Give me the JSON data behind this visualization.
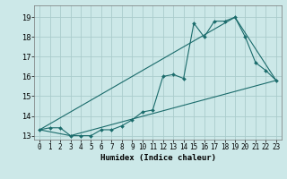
{
  "title": "",
  "xlabel": "Humidex (Indice chaleur)",
  "bg_color": "#cce8e8",
  "grid_color": "#aacccc",
  "line_color": "#1a6b6b",
  "xlim": [
    -0.5,
    23.5
  ],
  "ylim": [
    12.8,
    19.6
  ],
  "yticks": [
    13,
    14,
    15,
    16,
    17,
    18,
    19
  ],
  "xticks": [
    0,
    1,
    2,
    3,
    4,
    5,
    6,
    7,
    8,
    9,
    10,
    11,
    12,
    13,
    14,
    15,
    16,
    17,
    18,
    19,
    20,
    21,
    22,
    23
  ],
  "xtick_labels": [
    "0",
    "1",
    "2",
    "3",
    "4",
    "5",
    "6",
    "7",
    "8",
    "9",
    "10",
    "11",
    "12",
    "13",
    "14",
    "15",
    "16",
    "17",
    "18",
    "19",
    "20",
    "21",
    "22",
    "23"
  ],
  "line1_x": [
    0,
    1,
    2,
    3,
    4,
    5,
    6,
    7,
    8,
    9,
    10,
    11,
    12,
    13,
    14,
    15,
    16,
    17,
    18,
    19,
    20,
    21,
    22,
    23
  ],
  "line1_y": [
    13.3,
    13.4,
    13.4,
    13.0,
    13.0,
    13.0,
    13.3,
    13.3,
    13.5,
    13.8,
    14.2,
    14.3,
    16.0,
    16.1,
    15.9,
    18.7,
    18.0,
    18.8,
    18.8,
    19.0,
    18.0,
    16.7,
    16.3,
    15.8
  ],
  "line2_x": [
    0,
    3,
    23
  ],
  "line2_y": [
    13.3,
    13.0,
    15.8
  ],
  "line3_x": [
    0,
    19,
    23
  ],
  "line3_y": [
    13.3,
    19.0,
    15.8
  ],
  "marker_size": 2.0,
  "line_width": 0.8,
  "tick_fontsize": 5.5,
  "xlabel_fontsize": 6.5
}
